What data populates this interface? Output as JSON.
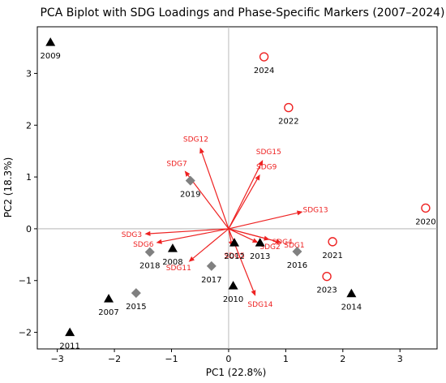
{
  "chart_data": {
    "type": "scatter",
    "title": "PCA Biplot with SDG Loadings and Phase-Specific Markers (2007–2024)",
    "xlabel": "PC1 (22.8%)",
    "ylabel": "PC2 (18.3%)",
    "xlim": [
      -3.35,
      3.65
    ],
    "ylim": [
      -2.32,
      3.9
    ],
    "xticks": [
      -3,
      -2,
      -1,
      0,
      1,
      2,
      3
    ],
    "yticks": [
      -2,
      -1,
      0,
      1,
      2,
      3
    ],
    "grid": false,
    "reference_lines": {
      "x": 0,
      "y": 0
    },
    "marker_styles": {
      "triangle": {
        "color": "#000000",
        "shape": "filled-triangle"
      },
      "diamond": {
        "color": "#808080",
        "shape": "filled-diamond"
      },
      "circle": {
        "color": "#ee2222",
        "shape": "hollow-circle"
      }
    },
    "points": [
      {
        "label": "2007",
        "x": -2.1,
        "y": -1.35,
        "marker": "triangle"
      },
      {
        "label": "2008",
        "x": -0.98,
        "y": -0.38,
        "marker": "triangle"
      },
      {
        "label": "2009",
        "x": -3.12,
        "y": 3.6,
        "marker": "triangle"
      },
      {
        "label": "2010",
        "x": 0.08,
        "y": -1.1,
        "marker": "triangle"
      },
      {
        "label": "2011",
        "x": -2.78,
        "y": -2.0,
        "marker": "triangle"
      },
      {
        "label": "2012",
        "x": 0.1,
        "y": -0.27,
        "marker": "triangle"
      },
      {
        "label": "2013",
        "x": 0.55,
        "y": -0.27,
        "marker": "triangle"
      },
      {
        "label": "2014",
        "x": 2.15,
        "y": -1.25,
        "marker": "triangle"
      },
      {
        "label": "2015",
        "x": -1.62,
        "y": -1.24,
        "marker": "diamond"
      },
      {
        "label": "2016",
        "x": 1.2,
        "y": -0.44,
        "marker": "diamond"
      },
      {
        "label": "2017",
        "x": -0.3,
        "y": -0.72,
        "marker": "diamond"
      },
      {
        "label": "2018",
        "x": -1.38,
        "y": -0.45,
        "marker": "diamond"
      },
      {
        "label": "2019",
        "x": -0.67,
        "y": 0.93,
        "marker": "diamond"
      },
      {
        "label": "2020",
        "x": 3.45,
        "y": 0.4,
        "marker": "circle"
      },
      {
        "label": "2021",
        "x": 1.82,
        "y": -0.25,
        "marker": "circle"
      },
      {
        "label": "2022",
        "x": 1.05,
        "y": 2.34,
        "marker": "circle"
      },
      {
        "label": "2023",
        "x": 1.72,
        "y": -0.92,
        "marker": "circle"
      },
      {
        "label": "2024",
        "x": 0.62,
        "y": 3.32,
        "marker": "circle"
      }
    ],
    "loadings": [
      {
        "label": "SDG1",
        "x": 0.93,
        "y": -0.27
      },
      {
        "label": "SDG2",
        "x": 0.52,
        "y": -0.27
      },
      {
        "label": "SDG3",
        "x": -1.47,
        "y": -0.1
      },
      {
        "label": "SDG4",
        "x": 0.72,
        "y": -0.21
      },
      {
        "label": "SDG5",
        "x": 0.06,
        "y": -0.35
      },
      {
        "label": "SDG6",
        "x": -1.27,
        "y": -0.27
      },
      {
        "label": "SDG7",
        "x": -0.77,
        "y": 1.12
      },
      {
        "label": "SDG9",
        "x": 0.55,
        "y": 1.05
      },
      {
        "label": "SDG11",
        "x": -0.7,
        "y": -0.64
      },
      {
        "label": "SDG12",
        "x": -0.5,
        "y": 1.57
      },
      {
        "label": "SDG13",
        "x": 1.3,
        "y": 0.33
      },
      {
        "label": "SDG14",
        "x": 0.47,
        "y": -1.3
      },
      {
        "label": "SDG15",
        "x": 0.6,
        "y": 1.33
      }
    ],
    "loading_color": "#ee2222"
  }
}
